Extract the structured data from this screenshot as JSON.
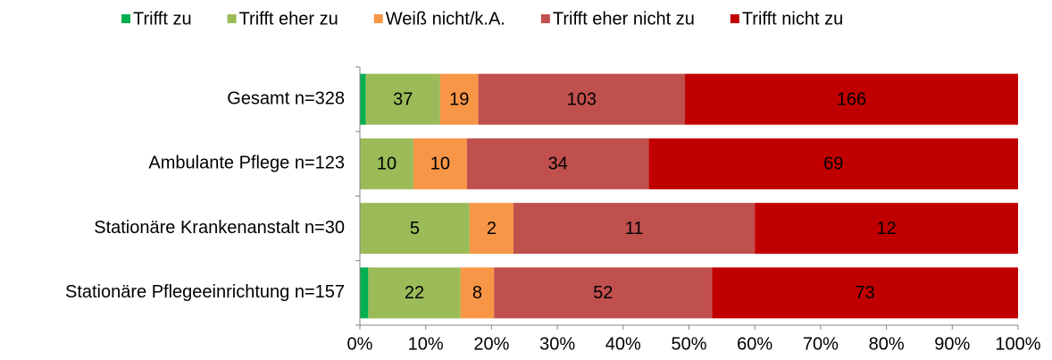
{
  "chart_data": {
    "type": "bar",
    "orientation": "horizontal",
    "stacked": "percent",
    "categories": [
      "Gesamt n=328",
      "Ambulante Pflege n=123",
      "Stationäre Krankenanstalt n=30",
      "Stationäre Pflegeeinrichtung n=157"
    ],
    "series": [
      {
        "name": "Trifft zu",
        "color": "#00b050",
        "values": [
          3,
          0,
          0,
          2
        ],
        "labels": false
      },
      {
        "name": "Trifft eher zu",
        "color": "#9bbb59",
        "values": [
          37,
          10,
          5,
          22
        ]
      },
      {
        "name": "Weiß nicht/k.A.",
        "color": "#f79646",
        "values": [
          19,
          10,
          2,
          8
        ]
      },
      {
        "name": "Trifft eher nicht zu",
        "color": "#c0504d",
        "values": [
          103,
          34,
          11,
          52
        ]
      },
      {
        "name": "Trifft nicht zu",
        "color": "#c00000",
        "values": [
          166,
          69,
          12,
          73
        ]
      }
    ],
    "xlim": [
      0,
      100
    ],
    "xticks": [
      {
        "value": 0,
        "label": "0%"
      },
      {
        "value": 10,
        "label": "10%"
      },
      {
        "value": 20,
        "label": "20%"
      },
      {
        "value": 30,
        "label": "30%"
      },
      {
        "value": 40,
        "label": "40%"
      },
      {
        "value": 50,
        "label": "50%"
      },
      {
        "value": 60,
        "label": "60%"
      },
      {
        "value": 70,
        "label": "70%"
      },
      {
        "value": 80,
        "label": "80%"
      },
      {
        "value": 90,
        "label": "90%"
      },
      {
        "value": 100,
        "label": "100%"
      }
    ],
    "legend": "top",
    "grid": false
  }
}
